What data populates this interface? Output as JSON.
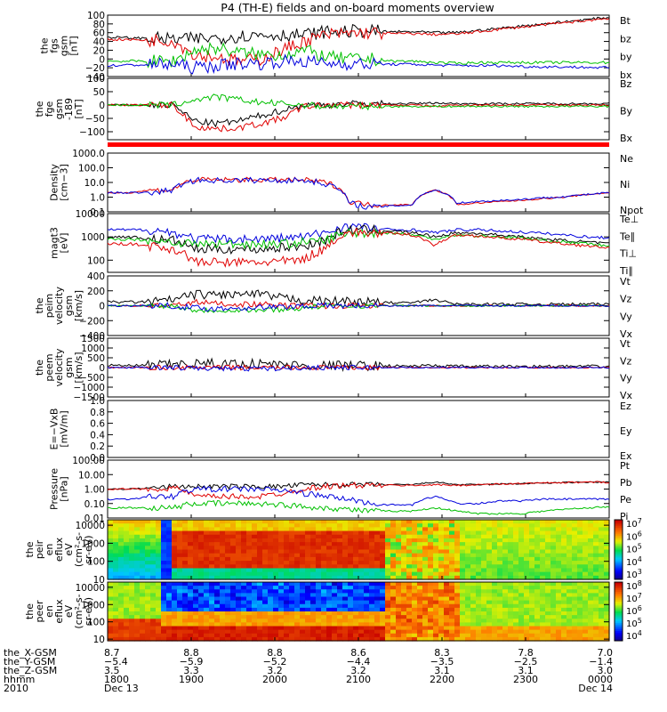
{
  "title": "P4 (TH-E) fields and on-board moments overview",
  "panels": [
    {
      "id": "fgs",
      "ylabel": [
        "the",
        "fgs",
        "gsm",
        "[nT]"
      ],
      "ymin": -40,
      "ymax": 100,
      "log": false,
      "ticks": [
        "100",
        "80",
        "60",
        "40",
        "20",
        "0",
        "−20",
        "−40"
      ],
      "tickvals": [
        100,
        80,
        60,
        40,
        20,
        0,
        -20,
        -40
      ],
      "legend": [
        {
          "text": "Bt",
          "color": "#000000"
        },
        {
          "text": "bz",
          "color": "#e00000"
        },
        {
          "text": "by",
          "color": "#00c000"
        },
        {
          "text": "bx",
          "color": "#0000dd"
        }
      ]
    },
    {
      "id": "fge",
      "ylabel": [
        "the",
        "fge",
        "gsm",
        "-189",
        "[nT]"
      ],
      "ymin": -130,
      "ymax": 100,
      "log": false,
      "ticks": [
        "100",
        "50",
        "0",
        "−50",
        "−100"
      ],
      "tickvals": [
        100,
        50,
        0,
        -50,
        -100
      ],
      "legend": [
        {
          "text": "Bz",
          "color": "#e00000"
        },
        {
          "text": "By",
          "color": "#00c000"
        },
        {
          "text": "Bx",
          "color": "#0000dd"
        }
      ]
    },
    {
      "id": "density",
      "ylabel": [
        "Density",
        "[cm−3]"
      ],
      "ymin": 0.1,
      "ymax": 1000,
      "log": true,
      "ticks": [
        "1000.0",
        "100.0",
        "10.0",
        "1.0",
        "0.1"
      ],
      "tickvals": [
        1000,
        100,
        10,
        1,
        0.1
      ],
      "legend": [
        {
          "text": "Ne",
          "color": "#e00000"
        },
        {
          "text": "Ni",
          "color": "#000000"
        },
        {
          "text": "Npot",
          "color": "#0000dd"
        }
      ]
    },
    {
      "id": "temp",
      "ylabel": [
        "magt3",
        "[eV]"
      ],
      "ymin": 30,
      "ymax": 10000,
      "log": true,
      "ticks": [
        "10000",
        "1000",
        "100"
      ],
      "tickvals": [
        10000,
        1000,
        100
      ],
      "legend": [
        {
          "text": "Te⊥",
          "color": "#e00000"
        },
        {
          "text": "Te∥",
          "color": "#000000"
        },
        {
          "text": "Ti⊥",
          "color": "#e00000"
        },
        {
          "text": "Ti∥",
          "color": "#00c000"
        }
      ]
    },
    {
      "id": "peim",
      "ylabel": [
        "the",
        "peim",
        "velocity",
        "gsm",
        "[km/s]"
      ],
      "ymin": -400,
      "ymax": 400,
      "log": false,
      "ticks": [
        "400",
        "200",
        "0",
        "−200",
        "−400"
      ],
      "tickvals": [
        400,
        200,
        0,
        -200,
        -400
      ],
      "legend": [
        {
          "text": "Vt",
          "color": "#000000"
        },
        {
          "text": "Vz",
          "color": "#e00000"
        },
        {
          "text": "Vy",
          "color": "#00c000"
        },
        {
          "text": "Vx",
          "color": "#0000dd"
        }
      ]
    },
    {
      "id": "peem",
      "ylabel": [
        "the",
        "peem",
        "velocity",
        "gsm",
        "[km/s]"
      ],
      "ymin": -1500,
      "ymax": 1500,
      "log": false,
      "ticks": [
        "1500",
        "1000",
        "500",
        "0",
        "−500",
        "−1000",
        "−1500"
      ],
      "tickvals": [
        1500,
        1000,
        500,
        0,
        -500,
        -1000,
        -1500
      ],
      "legend": [
        {
          "text": "Vt",
          "color": "#000000"
        },
        {
          "text": "Vz",
          "color": "#e00000"
        },
        {
          "text": "Vy",
          "color": "#00c000"
        },
        {
          "text": "Vx",
          "color": "#0000dd"
        }
      ]
    },
    {
      "id": "efield",
      "ylabel": [
        "E=−VxB",
        "[mV/m]"
      ],
      "ymin": 0,
      "ymax": 1,
      "log": false,
      "ticks": [
        "1.0",
        "0.8",
        "0.6",
        "0.4",
        "0.2",
        "0.0"
      ],
      "tickvals": [
        1,
        0.8,
        0.6,
        0.4,
        0.2,
        0
      ],
      "legend": [
        {
          "text": "Ez",
          "color": "#e00000"
        },
        {
          "text": "Ey",
          "color": "#00c000"
        },
        {
          "text": "Ex",
          "color": "#0000dd"
        }
      ]
    },
    {
      "id": "pressure",
      "ylabel": [
        "Pressure",
        "[nPa]"
      ],
      "ymin": 0.01,
      "ymax": 100,
      "log": true,
      "ticks": [
        "100.00",
        "10.00",
        "1.00",
        "0.10",
        "0.01"
      ],
      "tickvals": [
        100,
        10,
        1,
        0.1,
        0.01
      ],
      "legend": [
        {
          "text": "Pt",
          "color": "#000000"
        },
        {
          "text": "Pb",
          "color": "#e00000"
        },
        {
          "text": "Pe",
          "color": "#00c000"
        },
        {
          "text": "Pi",
          "color": "#0000dd"
        }
      ]
    },
    {
      "id": "peir",
      "ylabel": [
        "the",
        "peir",
        "en",
        "eflux",
        "eV",
        "(cm²-s-",
        "sr-eV)"
      ],
      "ymin": 10,
      "ymax": 20000,
      "log": true,
      "ticks": [
        "10000",
        "1000",
        "100",
        "10"
      ],
      "tickvals": [
        10000,
        1000,
        100,
        10
      ],
      "legend": []
    },
    {
      "id": "peer",
      "ylabel": [
        "the",
        "peer",
        "en",
        "eflux",
        "eV",
        "(cm²-s-",
        "sr-eV)"
      ],
      "ymin": 8,
      "ymax": 20000,
      "log": true,
      "ticks": [
        "10000",
        "1000",
        "100",
        "10"
      ],
      "tickvals": [
        10000,
        1000,
        100,
        10
      ],
      "legend": []
    }
  ],
  "colorbars": [
    {
      "labels": [
        {
          "b": "10",
          "e": "7"
        },
        {
          "b": "10",
          "e": "6"
        },
        {
          "b": "10",
          "e": "5"
        },
        {
          "b": "10",
          "e": "4"
        },
        {
          "b": "10",
          "e": "3"
        }
      ]
    },
    {
      "labels": [
        {
          "b": "10",
          "e": "8"
        },
        {
          "b": "10",
          "e": "7"
        },
        {
          "b": "10",
          "e": "6"
        },
        {
          "b": "10",
          "e": "5"
        },
        {
          "b": "10",
          "e": "4"
        }
      ]
    }
  ],
  "footer": {
    "rowlabels": [
      "the_X-GSM",
      "the_Y-GSM",
      "the_Z-GSM",
      "hhmm",
      "2010"
    ],
    "columns": [
      [
        "8.7",
        "−5.4",
        "3.5",
        "1800",
        "Dec 13"
      ],
      [
        "8.8",
        "−5.9",
        "3.3",
        "1900",
        ""
      ],
      [
        "8.8",
        "−5.2",
        "3.2",
        "2000",
        ""
      ],
      [
        "8.6",
        "−4.4",
        "3.2",
        "2100",
        ""
      ],
      [
        "8.3",
        "−3.5",
        "3.1",
        "2200",
        ""
      ],
      [
        "7.8",
        "−2.5",
        "3.1",
        "2300",
        ""
      ],
      [
        "7.0",
        "−1.4",
        "3.0",
        "0000",
        "Dec 14"
      ]
    ]
  },
  "chart_data": {
    "type": "line",
    "title": "P4 (TH-E) fields and on-board moments overview",
    "x_range": [
      "2010-12-13 18:00",
      "2010-12-14 00:00"
    ],
    "series": [
      {
        "name": "Bt",
        "panel": "fgs",
        "color": "#000000",
        "values": [
          50,
          48,
          47,
          45,
          46,
          48,
          52,
          55,
          55,
          55,
          62,
          63,
          64,
          62,
          62,
          60,
          60,
          65,
          70,
          75,
          80,
          85,
          90,
          95
        ]
      },
      {
        "name": "bz",
        "panel": "fgs",
        "color": "#e00000",
        "values": [
          45,
          44,
          43,
          42,
          10,
          5,
          -5,
          0,
          20,
          40,
          55,
          58,
          60,
          58,
          58,
          56,
          57,
          62,
          68,
          73,
          78,
          83,
          88,
          93
        ]
      },
      {
        "name": "by",
        "panel": "fgs",
        "color": "#00c000",
        "values": [
          -5,
          -5,
          -5,
          -5,
          20,
          25,
          15,
          10,
          10,
          20,
          5,
          0,
          0,
          -5,
          -5,
          -8,
          -10,
          -8,
          -8,
          -8,
          -8,
          -8,
          -8,
          -8
        ]
      },
      {
        "name": "bx",
        "panel": "fgs",
        "color": "#0000dd",
        "values": [
          -15,
          -14,
          -13,
          -12,
          -20,
          -15,
          -10,
          -10,
          -5,
          -5,
          -10,
          -10,
          -12,
          -12,
          -12,
          -14,
          -15,
          -15,
          -15,
          -17,
          -18,
          -18,
          -19,
          -20
        ]
      },
      {
        "name": "Ne",
        "panel": "density",
        "color": "#e00000",
        "values": [
          2,
          2,
          3,
          3,
          15,
          15,
          15,
          15,
          15,
          15,
          10,
          0.5,
          0.3,
          0.3,
          0.3,
          3,
          0.3,
          0.4,
          0.5,
          0.6,
          0.8,
          1,
          1.5,
          2
        ]
      },
      {
        "name": "Pt",
        "panel": "pressure",
        "color": "#000000",
        "values": [
          1,
          1,
          1.2,
          1.5,
          1.5,
          1.5,
          1.5,
          1.5,
          1.5,
          2,
          2,
          2,
          2,
          2,
          2,
          3,
          2,
          2,
          2.2,
          2.4,
          2.6,
          2.8,
          3,
          3
        ]
      }
    ],
    "legend_placement": "right"
  }
}
